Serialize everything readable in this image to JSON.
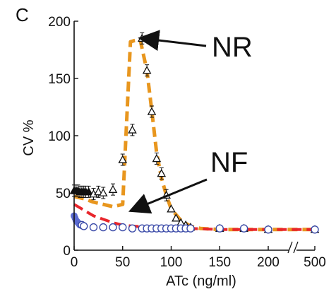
{
  "chart_data": {
    "type": "scatter",
    "panel_label": "C",
    "xlabel": "ATc (ng/ml)",
    "ylabel": "CV %",
    "xlim": [
      0,
      500
    ],
    "ylim": [
      0,
      200
    ],
    "x_axis_break": {
      "after": 200,
      "before": 500,
      "symbol": "//"
    },
    "x_ticks": [
      0,
      50,
      100,
      150,
      200,
      500
    ],
    "y_ticks": [
      0,
      50,
      100,
      150,
      200
    ],
    "grid": false,
    "colors": {
      "nr_fit": "#e8961e",
      "nf_fit": "#e8262c",
      "nr_markers": "#111111",
      "nf_markers": "#3a4aa8",
      "nf_low_markers": "#5a6ad0"
    },
    "series": [
      {
        "name": "NR",
        "marker": "triangle-open",
        "points": [
          [
            0,
            52
          ],
          [
            2,
            52
          ],
          [
            4,
            52
          ],
          [
            6,
            51
          ],
          [
            8,
            51
          ],
          [
            10,
            51
          ],
          [
            12,
            51
          ],
          [
            15,
            51
          ],
          [
            20,
            49
          ],
          [
            25,
            51
          ],
          [
            30,
            50
          ],
          [
            40,
            53
          ],
          [
            50,
            79
          ],
          [
            60,
            105
          ],
          [
            70,
            185
          ],
          [
            75,
            157
          ],
          [
            80,
            121
          ],
          [
            85,
            80
          ],
          [
            90,
            67
          ],
          [
            95,
            48
          ],
          [
            100,
            36
          ],
          [
            105,
            28
          ],
          [
            110,
            24
          ],
          [
            115,
            22
          ],
          [
            120,
            20
          ],
          [
            150,
            19
          ],
          [
            175,
            19
          ],
          [
            200,
            18
          ],
          [
            500,
            18
          ]
        ],
        "error_bars": true
      },
      {
        "name": "NF",
        "marker": "circle-open",
        "points": [
          [
            0,
            30
          ],
          [
            1,
            28
          ],
          [
            2,
            26
          ],
          [
            3,
            25
          ],
          [
            4,
            24
          ],
          [
            5,
            23
          ],
          [
            6,
            22
          ],
          [
            8,
            22
          ],
          [
            10,
            21
          ],
          [
            20,
            20
          ],
          [
            30,
            20
          ],
          [
            40,
            20
          ],
          [
            50,
            20
          ],
          [
            60,
            19
          ],
          [
            70,
            19
          ],
          [
            75,
            19
          ],
          [
            80,
            19
          ],
          [
            85,
            19
          ],
          [
            90,
            19
          ],
          [
            95,
            19
          ],
          [
            100,
            19
          ],
          [
            105,
            19
          ],
          [
            110,
            19
          ],
          [
            115,
            19
          ],
          [
            120,
            19
          ],
          [
            150,
            19
          ],
          [
            175,
            19
          ],
          [
            200,
            18
          ],
          [
            500,
            18
          ]
        ]
      }
    ],
    "fit_lines": [
      {
        "series": "NR",
        "style": "dashed",
        "points": [
          [
            0,
            47
          ],
          [
            10,
            45
          ],
          [
            20,
            42
          ],
          [
            30,
            40
          ],
          [
            40,
            38
          ],
          [
            50,
            40
          ],
          [
            58,
            182
          ],
          [
            62,
            183
          ],
          [
            68,
            184
          ],
          [
            75,
            157
          ],
          [
            80,
            122
          ],
          [
            85,
            85
          ],
          [
            90,
            63
          ],
          [
            95,
            48
          ],
          [
            100,
            36
          ],
          [
            110,
            26
          ],
          [
            120,
            21
          ],
          [
            130,
            19
          ],
          [
            150,
            18
          ],
          [
            200,
            18
          ],
          [
            500,
            18
          ]
        ]
      },
      {
        "series": "NF",
        "style": "dashed",
        "points": [
          [
            0,
            40
          ],
          [
            10,
            35
          ],
          [
            20,
            30
          ],
          [
            30,
            27
          ],
          [
            40,
            24
          ],
          [
            50,
            22
          ],
          [
            60,
            21
          ],
          [
            80,
            20
          ],
          [
            100,
            19
          ],
          [
            120,
            19
          ],
          [
            150,
            18
          ],
          [
            200,
            18
          ],
          [
            500,
            18
          ]
        ]
      }
    ],
    "annotations": [
      {
        "text": "NR",
        "points_to": [
          70,
          185
        ]
      },
      {
        "text": "NF",
        "points_to": [
          60,
          35
        ]
      }
    ]
  }
}
